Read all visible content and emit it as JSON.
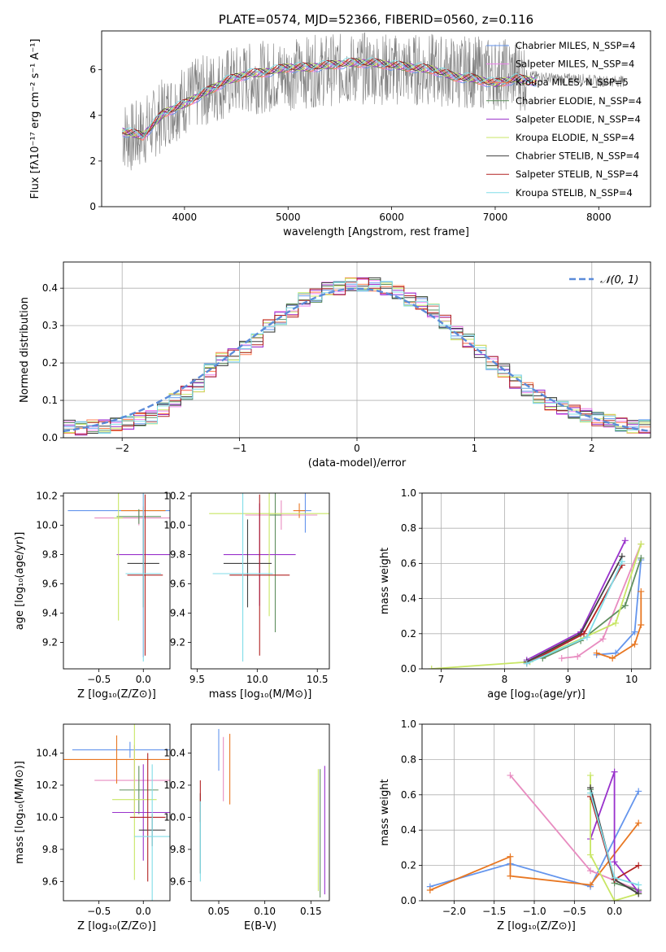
{
  "chart_data": [
    {
      "type": "line",
      "title": "PLATE=0574, MJD=52366, FIBERID=0560, z=0.116",
      "xlabel": "wavelength [Angstrom, rest frame]",
      "ylabel": "Flux [fλ10⁻¹⁷ erg cm⁻² s⁻¹ A⁻¹]",
      "xlim": [
        3200,
        8500
      ],
      "ylim": [
        0,
        7.7
      ],
      "xticks": [
        4000,
        5000,
        6000,
        7000,
        8000
      ],
      "yticks": [
        0,
        2,
        4,
        6
      ],
      "grid": false,
      "legend_position": "right",
      "observed_spectrum": {
        "color": "#808080",
        "x": [
          3400,
          3500,
          3600,
          3700,
          3800,
          3900,
          4000,
          4200,
          4400,
          4600,
          4800,
          5000,
          5200,
          5400,
          5600,
          5800,
          6000,
          6200,
          6400,
          6600,
          6800,
          7000,
          7200,
          7400,
          7600,
          7800,
          8000,
          8250
        ],
        "y": [
          3.2,
          3.0,
          3.3,
          3.6,
          4.1,
          4.4,
          4.7,
          5.1,
          5.4,
          5.6,
          5.7,
          5.8,
          5.9,
          6.0,
          6.0,
          6.1,
          6.0,
          6.0,
          6.0,
          5.9,
          5.9,
          5.8,
          5.8,
          5.7,
          5.6,
          5.6,
          5.5,
          5.5
        ]
      },
      "series": [
        {
          "name": "Chabrier MILES, N_SSP=4",
          "color": "#6495ed"
        },
        {
          "name": "Salpeter MILES, N_SSP=4",
          "color": "#ee82ee"
        },
        {
          "name": "Kroupa MILES, N_SSP=5",
          "color": "#ff7f50"
        },
        {
          "name": "Chabrier ELODIE, N_SSP=4",
          "color": "#5f8f5f"
        },
        {
          "name": "Salpeter ELODIE, N_SSP=4",
          "color": "#9932cc"
        },
        {
          "name": "Kroupa ELODIE, N_SSP=4",
          "color": "#c8e664"
        },
        {
          "name": "Chabrier STELIB, N_SSP=4",
          "color": "#404040"
        },
        {
          "name": "Salpeter STELIB, N_SSP=4",
          "color": "#b22222"
        },
        {
          "name": "Kroupa STELIB, N_SSP=4",
          "color": "#80dde8"
        }
      ],
      "model_curve": {
        "x": [
          3400,
          3600,
          3800,
          4000,
          4200,
          4400,
          4600,
          4800,
          5000,
          5200,
          5400,
          5600,
          5800,
          6000,
          6200,
          6400,
          6600,
          6800,
          7000,
          7200,
          7400
        ],
        "y": [
          3.3,
          3.1,
          4.1,
          4.5,
          5.0,
          5.5,
          5.8,
          5.9,
          6.1,
          6.1,
          6.2,
          6.3,
          6.3,
          6.2,
          6.1,
          6.0,
          5.7,
          5.6,
          5.4,
          5.6,
          5.5
        ]
      }
    },
    {
      "type": "line",
      "xlabel": "(data-model)/error",
      "ylabel": "Normed distribution",
      "xlim": [
        -2.5,
        2.5
      ],
      "ylim": [
        0,
        0.47
      ],
      "xticks": [
        -2,
        -1,
        0,
        1,
        2
      ],
      "yticks": [
        0.0,
        0.1,
        0.2,
        0.3,
        0.4
      ],
      "grid": true,
      "legend_position": "top-right",
      "gaussian": {
        "name": "𝒩(0, 1)",
        "color": "#5b8bd9"
      },
      "histogram_bins": [
        -2.5,
        -2.4,
        -2.3,
        -2.2,
        -2.1,
        -2.0,
        -1.9,
        -1.8,
        -1.7,
        -1.6,
        -1.5,
        -1.4,
        -1.3,
        -1.2,
        -1.1,
        -1.0,
        -0.9,
        -0.8,
        -0.7,
        -0.6,
        -0.5,
        -0.4,
        -0.3,
        -0.2,
        -0.1,
        0.0,
        0.1,
        0.2,
        0.3,
        0.4,
        0.5,
        0.6,
        0.7,
        0.8,
        0.9,
        1.0,
        1.1,
        1.2,
        1.3,
        1.4,
        1.5,
        1.6,
        1.7,
        1.8,
        1.9,
        2.0,
        2.1,
        2.2,
        2.3,
        2.4,
        2.5
      ],
      "histogram_values": [
        0.03,
        0.025,
        0.03,
        0.03,
        0.035,
        0.04,
        0.05,
        0.055,
        0.075,
        0.1,
        0.12,
        0.14,
        0.18,
        0.21,
        0.22,
        0.24,
        0.26,
        0.3,
        0.32,
        0.34,
        0.37,
        0.38,
        0.4,
        0.4,
        0.41,
        0.41,
        0.41,
        0.4,
        0.39,
        0.37,
        0.36,
        0.34,
        0.31,
        0.28,
        0.26,
        0.23,
        0.2,
        0.18,
        0.15,
        0.13,
        0.11,
        0.09,
        0.08,
        0.07,
        0.06,
        0.05,
        0.045,
        0.035,
        0.03,
        0.03
      ]
    },
    {
      "type": "scatter",
      "xlabel": "Z [log₁₀(Z/Z⊙)]",
      "ylabel": "age  [log₁₀(age/yr)]",
      "xlim": [
        -0.9,
        0.3
      ],
      "ylim": [
        9.02,
        10.22
      ],
      "xticks": [
        -0.5,
        0.0
      ],
      "yticks": [
        9.2,
        9.4,
        9.6,
        9.8,
        10.0,
        10.2
      ],
      "points": [
        {
          "x": 0.0,
          "y": 10.1,
          "xerr": 0.85,
          "yerr": 0.02,
          "color": "#6495ed"
        },
        {
          "x": -0.05,
          "y": 10.05,
          "xerr": 0.5,
          "yerr": 0.05,
          "color": "#e88cc0"
        },
        {
          "x": 0.0,
          "y": 10.1,
          "xerr": 0.25,
          "yerr": 0.03,
          "color": "#e87722"
        },
        {
          "x": -0.05,
          "y": 10.06,
          "xerr": 0.25,
          "yerr": 0.05,
          "color": "#5f8f5f"
        },
        {
          "x": 0.0,
          "y": 9.8,
          "xerr": 0.3,
          "yerr": 0.7,
          "color": "#9932cc"
        },
        {
          "x": -0.28,
          "y": 10.05,
          "xerr": 0.05,
          "yerr": 0.7,
          "color": "#c8e664"
        },
        {
          "x": 0.0,
          "y": 9.74,
          "xerr": 0.18,
          "yerr": 0.3,
          "color": "#404040"
        },
        {
          "x": 0.02,
          "y": 9.66,
          "xerr": 0.2,
          "yerr": 0.55,
          "color": "#b22222"
        },
        {
          "x": 0.0,
          "y": 9.67,
          "xerr": 0.2,
          "yerr": 0.6,
          "color": "#80dde8"
        }
      ]
    },
    {
      "type": "scatter",
      "xlabel": "mass [log₁₀(M/M⊙)]",
      "xlim": [
        9.45,
        10.6
      ],
      "ylim": [
        9.02,
        10.22
      ],
      "xticks": [
        9.5,
        10.0,
        10.5
      ],
      "yticks": [
        9.2,
        9.4,
        9.6,
        9.8,
        10.0,
        10.2
      ],
      "points": [
        {
          "x": 10.4,
          "y": 10.1,
          "xerr": 0.05,
          "yerr": 0.15,
          "color": "#6495ed"
        },
        {
          "x": 10.2,
          "y": 10.07,
          "xerr": 0.3,
          "yerr": 0.1,
          "color": "#e88cc0"
        },
        {
          "x": 10.35,
          "y": 10.1,
          "xerr": 0.05,
          "yerr": 0.05,
          "color": "#e87722"
        },
        {
          "x": 10.15,
          "y": 10.07,
          "xerr": 0.05,
          "yerr": 0.8,
          "color": "#5f8f5f"
        },
        {
          "x": 10.02,
          "y": 9.8,
          "xerr": 0.3,
          "yerr": 0.35,
          "color": "#9932cc"
        },
        {
          "x": 10.1,
          "y": 10.08,
          "xerr": 0.5,
          "yerr": 0.7,
          "color": "#c8e664"
        },
        {
          "x": 9.92,
          "y": 9.74,
          "xerr": 0.2,
          "yerr": 0.3,
          "color": "#404040"
        },
        {
          "x": 10.02,
          "y": 9.66,
          "xerr": 0.25,
          "yerr": 0.55,
          "color": "#b22222"
        },
        {
          "x": 9.88,
          "y": 9.67,
          "xerr": 0.25,
          "yerr": 0.6,
          "color": "#80dde8"
        }
      ]
    },
    {
      "type": "line",
      "xlabel": "age  [log₁₀(age/yr)]",
      "ylabel": "mass weight",
      "xlim": [
        6.7,
        10.3
      ],
      "ylim": [
        0,
        1
      ],
      "xticks": [
        7,
        8,
        9,
        10
      ],
      "yticks": [
        0.0,
        0.2,
        0.4,
        0.6,
        0.8,
        1.0
      ],
      "grid": true,
      "series": [
        {
          "color": "#6495ed",
          "x": [
            9.45,
            9.75,
            10.05,
            10.15
          ],
          "y": [
            0.08,
            0.09,
            0.21,
            0.62
          ]
        },
        {
          "color": "#e88cc0",
          "x": [
            8.9,
            9.15,
            9.55,
            10.15
          ],
          "y": [
            0.06,
            0.07,
            0.17,
            0.71
          ]
        },
        {
          "color": "#e87722",
          "x": [
            9.45,
            9.7,
            10.05,
            10.15,
            10.15
          ],
          "y": [
            0.09,
            0.06,
            0.14,
            0.25,
            0.44
          ]
        },
        {
          "color": "#5f8f5f",
          "x": [
            8.6,
            9.2,
            9.9,
            10.15
          ],
          "y": [
            0.06,
            0.16,
            0.36,
            0.63
          ]
        },
        {
          "color": "#9932cc",
          "x": [
            8.35,
            9.2,
            9.9
          ],
          "y": [
            0.05,
            0.21,
            0.73
          ]
        },
        {
          "color": "#c8e664",
          "x": [
            6.85,
            8.4,
            9.75,
            10.15
          ],
          "y": [
            0.0,
            0.04,
            0.26,
            0.71
          ]
        },
        {
          "color": "#404040",
          "x": [
            8.35,
            9.2,
            9.85
          ],
          "y": [
            0.04,
            0.2,
            0.64
          ]
        },
        {
          "color": "#b22222",
          "x": [
            8.35,
            9.25,
            9.85
          ],
          "y": [
            0.03,
            0.2,
            0.59
          ]
        },
        {
          "color": "#80dde8",
          "x": [
            8.35,
            9.3,
            9.85
          ],
          "y": [
            0.03,
            0.18,
            0.61
          ]
        }
      ]
    },
    {
      "type": "scatter",
      "xlabel": "Z [log₁₀(Z/Z⊙)]",
      "ylabel": "mass [log₁₀(M/M⊙)]",
      "xlim": [
        -0.9,
        0.3
      ],
      "ylim": [
        9.48,
        10.58
      ],
      "xticks": [
        -0.5,
        0.0
      ],
      "yticks": [
        9.6,
        9.8,
        10.0,
        10.2,
        10.4
      ],
      "points": [
        {
          "x": -0.15,
          "y": 10.42,
          "xerr": 0.65,
          "yerr": 0.05,
          "color": "#6495ed"
        },
        {
          "x": -0.1,
          "y": 10.23,
          "xerr": 0.45,
          "yerr": 0.22,
          "color": "#e88cc0"
        },
        {
          "x": -0.3,
          "y": 10.36,
          "xerr": 0.6,
          "yerr": 0.15,
          "color": "#e87722"
        },
        {
          "x": -0.05,
          "y": 10.17,
          "xerr": 0.22,
          "yerr": 0.15,
          "color": "#5f8f5f"
        },
        {
          "x": 0.0,
          "y": 10.03,
          "xerr": 0.35,
          "yerr": 0.3,
          "color": "#9932cc"
        },
        {
          "x": -0.1,
          "y": 10.11,
          "xerr": 0.25,
          "yerr": 0.5,
          "color": "#c8e664"
        },
        {
          "x": 0.1,
          "y": 9.92,
          "xerr": 0.15,
          "yerr": 0.1,
          "color": "#404040"
        },
        {
          "x": 0.05,
          "y": 10.0,
          "xerr": 0.2,
          "yerr": 0.4,
          "color": "#b22222"
        },
        {
          "x": 0.1,
          "y": 9.88,
          "xerr": 0.2,
          "yerr": 0.45,
          "color": "#80dde8"
        }
      ]
    },
    {
      "type": "scatter",
      "xlabel": "E(B-V)",
      "xlim": [
        0.02,
        0.17
      ],
      "ylim": [
        9.48,
        10.58
      ],
      "xticks": [
        0.05,
        0.1,
        0.15
      ],
      "yticks": [
        9.6,
        9.8,
        10.0,
        10.2,
        10.4
      ],
      "points": [
        {
          "x": 0.05,
          "y": 10.42,
          "yerr": 0.13,
          "color": "#6495ed"
        },
        {
          "x": 0.055,
          "y": 10.3,
          "yerr": 0.2,
          "color": "#e88cc0"
        },
        {
          "x": 0.062,
          "y": 10.3,
          "yerr": 0.22,
          "color": "#e87722"
        },
        {
          "x": 0.16,
          "y": 9.9,
          "yerr": 0.4,
          "color": "#5f8f5f"
        },
        {
          "x": 0.165,
          "y": 9.92,
          "yerr": 0.4,
          "color": "#9932cc"
        },
        {
          "x": 0.158,
          "y": 9.92,
          "yerr": 0.38,
          "color": "#c8e664"
        },
        {
          "x": 0.03,
          "y": 9.9,
          "yerr": 0.25,
          "color": "#404040"
        },
        {
          "x": 0.03,
          "y": 10.1,
          "yerr": 0.13,
          "color": "#b22222"
        },
        {
          "x": 0.03,
          "y": 9.85,
          "yerr": 0.25,
          "color": "#80dde8"
        }
      ]
    },
    {
      "type": "line",
      "xlabel": "Z [log₁₀(Z/Z⊙)]",
      "ylabel": "mass weight",
      "xlim": [
        -2.4,
        0.45
      ],
      "ylim": [
        0,
        1
      ],
      "xticks": [
        -2.0,
        -1.5,
        -1.0,
        -0.5,
        0.0
      ],
      "yticks": [
        0.0,
        0.2,
        0.4,
        0.6,
        0.8,
        1.0
      ],
      "grid": true,
      "series": [
        {
          "color": "#6495ed",
          "x": [
            -2.3,
            -1.3,
            -0.3,
            0.3
          ],
          "y": [
            0.08,
            0.21,
            0.08,
            0.62
          ]
        },
        {
          "color": "#e88cc0",
          "x": [
            -1.3,
            -0.3,
            0.3
          ],
          "y": [
            0.71,
            0.17,
            0.06
          ]
        },
        {
          "color": "#e87722",
          "x": [
            -2.3,
            -1.3,
            -1.3,
            -0.3,
            0.3
          ],
          "y": [
            0.06,
            0.25,
            0.14,
            0.09,
            0.44
          ]
        },
        {
          "color": "#5f8f5f",
          "x": [
            -0.3,
            0.0,
            0.3
          ],
          "y": [
            0.63,
            0.1,
            0.06
          ]
        },
        {
          "color": "#9932cc",
          "x": [
            -0.3,
            0.0,
            0.0,
            0.3
          ],
          "y": [
            0.35,
            0.73,
            0.22,
            0.05
          ]
        },
        {
          "color": "#c8e664",
          "x": [
            -0.3,
            -0.3,
            0.0,
            0.3
          ],
          "y": [
            0.71,
            0.26,
            0.0,
            0.04
          ]
        },
        {
          "color": "#404040",
          "x": [
            -0.3,
            0.0,
            0.3
          ],
          "y": [
            0.64,
            0.12,
            0.04
          ]
        },
        {
          "color": "#b22222",
          "x": [
            -0.3,
            0.0,
            0.3
          ],
          "y": [
            0.59,
            0.12,
            0.2
          ]
        },
        {
          "color": "#80dde8",
          "x": [
            -0.3,
            0.0,
            0.3
          ],
          "y": [
            0.61,
            0.13,
            0.09
          ]
        }
      ]
    }
  ]
}
